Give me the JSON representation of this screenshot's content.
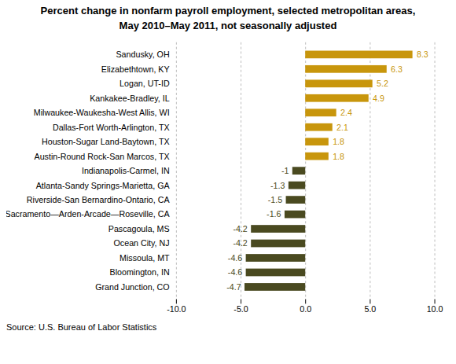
{
  "chart_data": {
    "type": "bar",
    "orientation": "horizontal",
    "title": "Percent change in nonfarm payroll employment, selected metropolitan areas,",
    "subtitle": "May 2010–May 2011, not seasonally adjusted",
    "source": "Source: U.S. Bureau of Labor Statistics",
    "categories": [
      "Grand Junction, CO",
      "Bloomington, IN",
      "Missoula, MT",
      "Ocean City, NJ",
      "Pascagoula, MS",
      "Sacramento—Arden-Arcade—Roseville, CA",
      "Riverside-San Bernardino-Ontario, CA",
      "Atlanta-Sandy Springs-Marietta, GA",
      "Indianapolis-Carmel, IN",
      "Austin-Round Rock-San Marcos, TX",
      "Houston-Sugar Land-Baytown, TX",
      "Dallas-Fort Worth-Arlington, TX",
      "Milwaukee-Waukesha-West Allis, WI",
      "Kankakee-Bradley, IL",
      "Logan, UT-ID",
      "Elizabethtown, KY",
      "Sandusky, OH"
    ],
    "values": [
      -4.7,
      -4.6,
      -4.6,
      -4.2,
      -4.2,
      -1.6,
      -1.5,
      -1.3,
      -1.0,
      1.8,
      1.8,
      2.1,
      2.4,
      4.9,
      5.2,
      6.3,
      8.3
    ],
    "colors": [
      "#4A4A20",
      "#4A4A20",
      "#4A4A20",
      "#4A4A20",
      "#4A4A20",
      "#4A4A20",
      "#4A4A20",
      "#4A4A20",
      "#4A4A20",
      "#C8960C",
      "#C8960C",
      "#C8960C",
      "#C8960C",
      "#C8960C",
      "#C8960C",
      "#C8960C",
      "#C8960C"
    ],
    "data_labels": true,
    "xlim": [
      -10.0,
      10.0
    ],
    "xticks": [
      {
        "value": -10.0,
        "label": "-10.0"
      },
      {
        "value": -5.0,
        "label": "-5.0"
      },
      {
        "value": 0.0,
        "label": "0.0"
      },
      {
        "value": 5.0,
        "label": "5.0"
      },
      {
        "value": 10.0,
        "label": "10.0"
      }
    ],
    "grid": true
  }
}
